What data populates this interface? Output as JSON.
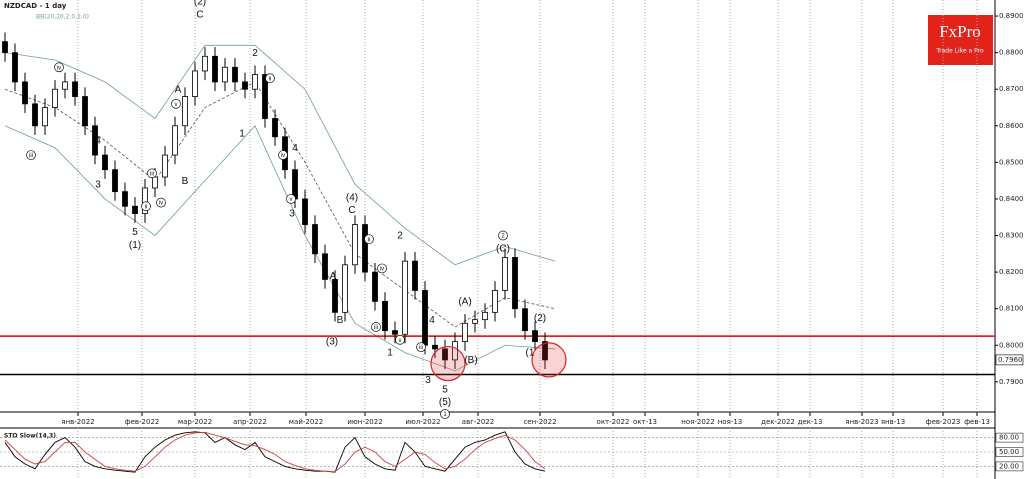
{
  "chart_data": {
    "type": "candlestick",
    "title": "NZDCAD - 1 day",
    "indicator_label": "BB(20,20,2.0,2.0)",
    "brand": {
      "name": "FxPro",
      "tagline": "Trade Like a Pro"
    },
    "candle_color": "#000000",
    "open": [
      0.883,
      0.88,
      0.872,
      0.866,
      0.86,
      0.865,
      0.87,
      0.872,
      0.868,
      0.86,
      0.852,
      0.848,
      0.842,
      0.838,
      0.836,
      0.843,
      0.846,
      0.852,
      0.86,
      0.868,
      0.875,
      0.879,
      0.872,
      0.876,
      0.872,
      0.87,
      0.874,
      0.862,
      0.857,
      0.848,
      0.84,
      0.833,
      0.825,
      0.818,
      0.809,
      0.822,
      0.833,
      0.82,
      0.812,
      0.804,
      0.803,
      0.823,
      0.815,
      0.8,
      0.799,
      0.796,
      0.801,
      0.806,
      0.807,
      0.809,
      0.815,
      0.824,
      0.81,
      0.804,
      0.801
    ],
    "high": [
      0.8855,
      0.8825,
      0.8745,
      0.8685,
      0.8675,
      0.8725,
      0.8745,
      0.8745,
      0.8705,
      0.8625,
      0.8545,
      0.8505,
      0.8445,
      0.8405,
      0.8455,
      0.8485,
      0.8545,
      0.8625,
      0.8705,
      0.8775,
      0.8815,
      0.8815,
      0.8785,
      0.8785,
      0.8745,
      0.8765,
      0.8765,
      0.8645,
      0.8595,
      0.8505,
      0.8425,
      0.8355,
      0.8275,
      0.8205,
      0.8245,
      0.8355,
      0.8355,
      0.8225,
      0.8145,
      0.8065,
      0.8255,
      0.8255,
      0.8175,
      0.8025,
      0.8015,
      0.8035,
      0.8085,
      0.8095,
      0.8115,
      0.8175,
      0.8265,
      0.8265,
      0.8125,
      0.8065,
      0.8035
    ],
    "low": [
      0.8775,
      0.8695,
      0.8635,
      0.8575,
      0.8575,
      0.8625,
      0.8675,
      0.8655,
      0.8575,
      0.8495,
      0.8455,
      0.8395,
      0.8355,
      0.8335,
      0.8335,
      0.8405,
      0.8435,
      0.8495,
      0.8575,
      0.8655,
      0.8725,
      0.8695,
      0.8695,
      0.8695,
      0.8675,
      0.8675,
      0.8595,
      0.8545,
      0.8455,
      0.8375,
      0.8305,
      0.8225,
      0.8155,
      0.8065,
      0.8065,
      0.8195,
      0.8175,
      0.8095,
      0.8015,
      0.8005,
      0.8005,
      0.8125,
      0.7975,
      0.7965,
      0.7935,
      0.7935,
      0.7985,
      0.8035,
      0.8045,
      0.8065,
      0.8125,
      0.8075,
      0.8015,
      0.7985,
      0.7935
    ],
    "close": [
      0.88,
      0.872,
      0.866,
      0.86,
      0.865,
      0.87,
      0.872,
      0.868,
      0.86,
      0.852,
      0.848,
      0.842,
      0.838,
      0.836,
      0.843,
      0.846,
      0.852,
      0.86,
      0.868,
      0.875,
      0.879,
      0.872,
      0.876,
      0.872,
      0.87,
      0.874,
      0.862,
      0.857,
      0.848,
      0.84,
      0.833,
      0.825,
      0.818,
      0.809,
      0.822,
      0.833,
      0.82,
      0.812,
      0.804,
      0.803,
      0.823,
      0.815,
      0.8,
      0.799,
      0.796,
      0.801,
      0.806,
      0.807,
      0.809,
      0.815,
      0.824,
      0.81,
      0.804,
      0.801,
      0.796
    ],
    "bands": {
      "color": "#6f9f8c",
      "middle_color": "#555555",
      "x": [
        0,
        5,
        10,
        15,
        20,
        25,
        30,
        35,
        40,
        45,
        50,
        55
      ],
      "upper": [
        0.88,
        0.878,
        0.872,
        0.862,
        0.882,
        0.882,
        0.87,
        0.844,
        0.832,
        0.822,
        0.827,
        0.823
      ],
      "middle": [
        0.87,
        0.865,
        0.856,
        0.845,
        0.865,
        0.872,
        0.85,
        0.825,
        0.815,
        0.805,
        0.813,
        0.81
      ],
      "lower": [
        0.86,
        0.854,
        0.84,
        0.83,
        0.845,
        0.86,
        0.83,
        0.806,
        0.798,
        0.793,
        0.8,
        0.799
      ]
    },
    "levels": [
      {
        "value": 0.8025,
        "color": "#e00000"
      },
      {
        "value": 0.792,
        "color": "#000000"
      }
    ],
    "last_price": {
      "value": 0.796,
      "label": "0.7960"
    },
    "highlights": [
      {
        "x": 44.3,
        "y": 0.795
      },
      {
        "x": 54.4,
        "y": 0.796
      }
    ],
    "annotations": [
      {
        "text": "5",
        "x": 13,
        "y": 0.831
      },
      {
        "text": "(1)",
        "x": 13,
        "y": 0.8275
      },
      {
        "text": "4",
        "x": 9.3,
        "y": 0.856
      },
      {
        "text": "3",
        "x": 9.3,
        "y": 0.844
      },
      {
        "text": "A",
        "x": 17.3,
        "y": 0.87
      },
      {
        "text": "B",
        "x": 18,
        "y": 0.845
      },
      {
        "text": "(2)",
        "x": 19.5,
        "y": 0.894
      },
      {
        "text": "C",
        "x": 19.5,
        "y": 0.8905
      },
      {
        "text": "2",
        "x": 25,
        "y": 0.88
      },
      {
        "text": "1",
        "x": 23.7,
        "y": 0.858
      },
      {
        "text": "4",
        "x": 29,
        "y": 0.854
      },
      {
        "text": "3",
        "x": 28.7,
        "y": 0.836
      },
      {
        "text": "A",
        "x": 32.8,
        "y": 0.819
      },
      {
        "text": "B",
        "x": 33.5,
        "y": 0.807
      },
      {
        "text": "(3)",
        "x": 32.7,
        "y": 0.801
      },
      {
        "text": "(4)",
        "x": 34.7,
        "y": 0.8405
      },
      {
        "text": "C",
        "x": 34.7,
        "y": 0.837
      },
      {
        "text": "2",
        "x": 39.5,
        "y": 0.83
      },
      {
        "text": "1",
        "x": 38.5,
        "y": 0.798
      },
      {
        "text": "4",
        "x": 42.7,
        "y": 0.807
      },
      {
        "text": "3",
        "x": 42.3,
        "y": 0.7905
      },
      {
        "text": "5",
        "x": 44,
        "y": 0.788
      },
      {
        "text": "(5)",
        "x": 44,
        "y": 0.7845
      },
      {
        "text": "1",
        "x": 44,
        "y": 0.7812,
        "circled": true
      },
      {
        "text": "(A)",
        "x": 46,
        "y": 0.812
      },
      {
        "text": "(B)",
        "x": 46.6,
        "y": 0.796
      },
      {
        "text": "2",
        "x": 49.8,
        "y": 0.83,
        "circled": true
      },
      {
        "text": "(C)",
        "x": 49.8,
        "y": 0.8265
      },
      {
        "text": "(2)",
        "x": 53.5,
        "y": 0.8075
      },
      {
        "text": "(1",
        "x": 52.5,
        "y": 0.798
      },
      {
        "text": "iii",
        "x": 2.6,
        "y": 0.852,
        "circled": true
      },
      {
        "text": "iv",
        "x": 5.4,
        "y": 0.876,
        "circled": true
      },
      {
        "text": "iii",
        "x": 14.7,
        "y": 0.847,
        "circled": true
      },
      {
        "text": "ii",
        "x": 14.1,
        "y": 0.838,
        "circled": true
      },
      {
        "text": "iv",
        "x": 15.6,
        "y": 0.839,
        "circled": true
      },
      {
        "text": "v",
        "x": 17.1,
        "y": 0.866,
        "circled": true
      },
      {
        "text": "ii",
        "x": 26.5,
        "y": 0.873,
        "circled": true
      },
      {
        "text": "iv",
        "x": 27.8,
        "y": 0.852,
        "circled": true
      },
      {
        "text": "v",
        "x": 28.6,
        "y": 0.84,
        "circled": true
      },
      {
        "text": "ii",
        "x": 36.4,
        "y": 0.829,
        "circled": true
      },
      {
        "text": "iv",
        "x": 37.7,
        "y": 0.821,
        "circled": true
      },
      {
        "text": "iii",
        "x": 37.1,
        "y": 0.805,
        "circled": true
      },
      {
        "text": "v",
        "x": 39.5,
        "y": 0.8015,
        "circled": true
      },
      {
        "text": "iii",
        "x": 41.6,
        "y": 0.7995,
        "circled": true
      }
    ],
    "xlim": [
      -0.5,
      99
    ],
    "xticks": [
      {
        "value": 7.3,
        "label": "янв-2022"
      },
      {
        "value": 13.7,
        "label": "фев-2022"
      },
      {
        "value": 19,
        "label": "мар-2022"
      },
      {
        "value": 24.5,
        "label": "апр-2022"
      },
      {
        "value": 30.1,
        "label": "май-2022"
      },
      {
        "value": 36,
        "label": "июн-2022"
      },
      {
        "value": 41.8,
        "label": "июл-2022"
      },
      {
        "value": 47.3,
        "label": "авг-2022"
      },
      {
        "value": 53.5,
        "label": "сен-2022"
      },
      {
        "value": 60.8,
        "label": "окт-2022"
      },
      {
        "value": 64,
        "label": "окт-13"
      },
      {
        "value": 69.3,
        "label": "ноя-2022"
      },
      {
        "value": 72.5,
        "label": "ноя-13"
      },
      {
        "value": 77.3,
        "label": "дек-2022"
      },
      {
        "value": 80.5,
        "label": "дек-13"
      },
      {
        "value": 85.7,
        "label": "янв-2023"
      },
      {
        "value": 88.8,
        "label": "янв-13"
      },
      {
        "value": 93.8,
        "label": "фев-2023"
      },
      {
        "value": 97.2,
        "label": "фев-13"
      }
    ],
    "ylim": [
      0.7823,
      0.8933
    ],
    "yticks": [
      {
        "value": 0.79,
        "label": "0.7900"
      },
      {
        "value": 0.8,
        "label": "0.8000"
      },
      {
        "value": 0.81,
        "label": "0.8100"
      },
      {
        "value": 0.82,
        "label": "0.8200"
      },
      {
        "value": 0.83,
        "label": "0.8300"
      },
      {
        "value": 0.84,
        "label": "0.8400"
      },
      {
        "value": 0.85,
        "label": "0.8500"
      },
      {
        "value": 0.86,
        "label": "0.8600"
      },
      {
        "value": 0.87,
        "label": "0.8700"
      },
      {
        "value": 0.88,
        "label": "0.8800"
      },
      {
        "value": 0.89,
        "label": "0.8900"
      }
    ],
    "grid": true,
    "oscillator": {
      "title": "STO Slow(14,3)",
      "ylim": [
        0,
        100
      ],
      "yticks": [
        {
          "value": 80,
          "label": "80.00"
        },
        {
          "value": 50,
          "label": "50.00"
        },
        {
          "value": 20,
          "label": "20.00"
        }
      ],
      "series": [
        {
          "name": "K",
          "color": "#000000",
          "values": [
            70,
            40,
            25,
            15,
            45,
            70,
            80,
            60,
            30,
            20,
            15,
            12,
            10,
            8,
            40,
            60,
            75,
            85,
            90,
            92,
            90,
            70,
            80,
            65,
            55,
            70,
            40,
            30,
            20,
            15,
            12,
            10,
            10,
            8,
            60,
            80,
            40,
            25,
            15,
            12,
            70,
            50,
            20,
            15,
            10,
            35,
            60,
            70,
            75,
            85,
            92,
            50,
            25,
            15,
            10
          ]
        },
        {
          "name": "D",
          "color": "#d04040",
          "values": [
            75,
            55,
            35,
            25,
            30,
            50,
            70,
            70,
            50,
            35,
            20,
            15,
            12,
            10,
            20,
            40,
            60,
            75,
            85,
            90,
            91,
            85,
            80,
            72,
            65,
            63,
            55,
            45,
            30,
            22,
            15,
            12,
            10,
            9,
            25,
            50,
            60,
            50,
            30,
            20,
            35,
            50,
            45,
            28,
            15,
            20,
            35,
            55,
            70,
            78,
            85,
            75,
            55,
            30,
            15
          ]
        }
      ]
    }
  }
}
